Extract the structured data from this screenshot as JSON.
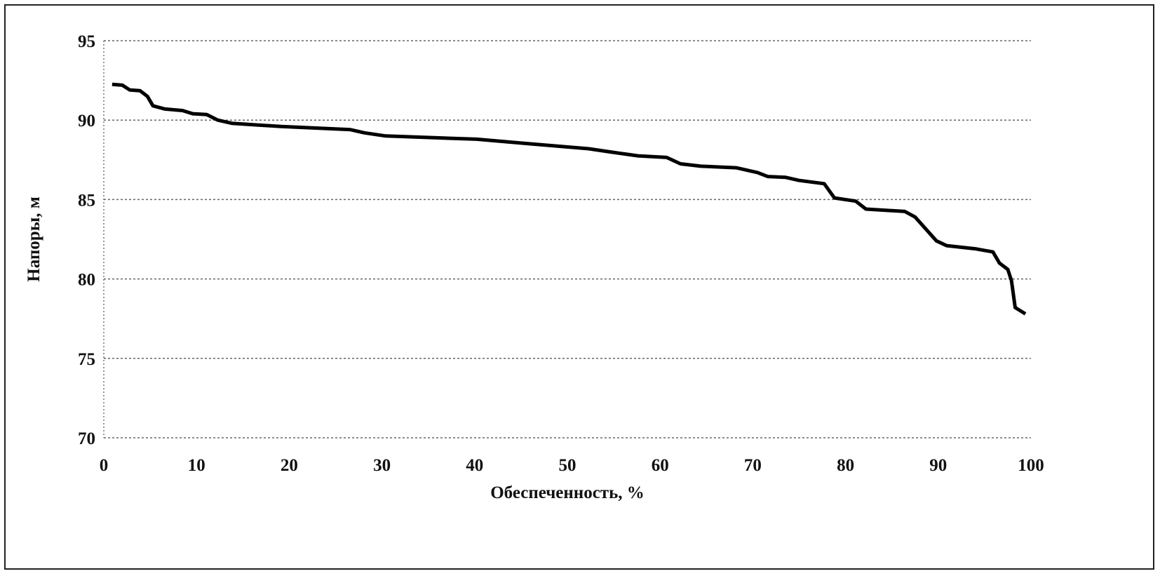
{
  "chart_data": {
    "type": "line",
    "title": "",
    "xlabel": "Обеспеченность, %",
    "ylabel": "Напоры, м",
    "xlim": [
      0,
      100
    ],
    "ylim": [
      70,
      95
    ],
    "xticks": [
      "0",
      "10",
      "20",
      "30",
      "40",
      "50",
      "60",
      "70",
      "80",
      "90",
      "100"
    ],
    "yticks": [
      "70",
      "75",
      "80",
      "85",
      "90",
      "95"
    ],
    "grid": "horizontal dotted",
    "line_color": "#000000",
    "series": [
      {
        "x": [
          0.9,
          2.0,
          2.8,
          3.9,
          4.7,
          5.3,
          6.6,
          8.5,
          9.6,
          11.1,
          12.3,
          13.8,
          19.1,
          26.6,
          28.1,
          30.4,
          40.2,
          46.2,
          52.3,
          54.6,
          57.6,
          60.7,
          62.2,
          64.4,
          68.2,
          70.5,
          71.6,
          73.5,
          75.0,
          77.7,
          78.8,
          81.1,
          82.2,
          86.4,
          87.5,
          89.8,
          90.9,
          94.0,
          95.9,
          96.6,
          97.5,
          97.9,
          98.3,
          99.4
        ],
        "y": [
          92.25,
          92.2,
          91.9,
          91.85,
          91.5,
          90.9,
          90.7,
          90.6,
          90.4,
          90.35,
          90.0,
          89.8,
          89.6,
          89.4,
          89.2,
          89.0,
          88.8,
          88.5,
          88.2,
          88.0,
          87.75,
          87.65,
          87.25,
          87.1,
          87.0,
          86.7,
          86.45,
          86.4,
          86.2,
          86.0,
          85.1,
          84.9,
          84.4,
          84.25,
          83.9,
          82.4,
          82.1,
          81.9,
          81.7,
          81.0,
          80.6,
          79.9,
          78.2,
          77.8
        ]
      }
    ]
  }
}
